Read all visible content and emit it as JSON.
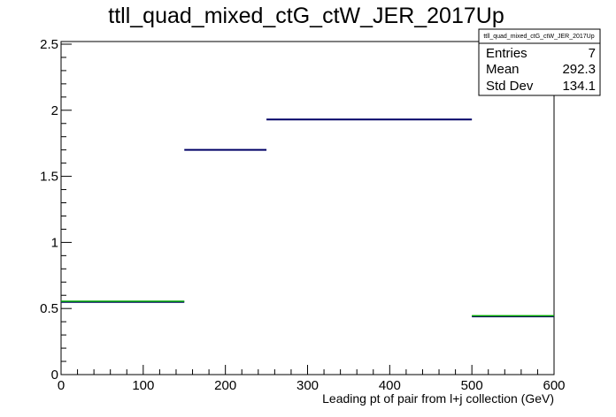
{
  "chart_data": {
    "type": "bar",
    "title": "ttll_quad_mixed_ctG_ctW_JER_2017Up",
    "xlabel": "Leading pt of pair from l+j collection (GeV)",
    "ylabel": "",
    "xlim": [
      0,
      600
    ],
    "ylim": [
      0,
      2.52
    ],
    "x_ticks": [
      "0",
      "100",
      "200",
      "300",
      "400",
      "500",
      "600"
    ],
    "y_ticks": [
      "0",
      "0.5",
      "1",
      "1.5",
      "2",
      "2.5"
    ],
    "bins": [
      {
        "x_low": 0,
        "x_high": 150,
        "value": 0.55
      },
      {
        "x_low": 150,
        "x_high": 250,
        "value": 1.7
      },
      {
        "x_low": 250,
        "x_high": 500,
        "value": 1.93
      },
      {
        "x_low": 500,
        "x_high": 600,
        "value": 0.44
      }
    ],
    "overlay_bins": [
      {
        "x_low": 0,
        "x_high": 150,
        "value": 0.555,
        "color": "#00aa00"
      },
      {
        "x_low": 500,
        "x_high": 600,
        "value": 0.445,
        "color": "#00aa00"
      }
    ],
    "line_color": "#000066",
    "grid": false,
    "legend": "none",
    "stats_box": {
      "title": "ttll_quad_mixed_ctG_ctW_JER_2017Up",
      "position": "top-right",
      "rows": [
        {
          "label": "Entries",
          "value": "7"
        },
        {
          "label": "Mean",
          "value": "292.3"
        },
        {
          "label": "Std Dev",
          "value": "134.1"
        }
      ]
    }
  }
}
